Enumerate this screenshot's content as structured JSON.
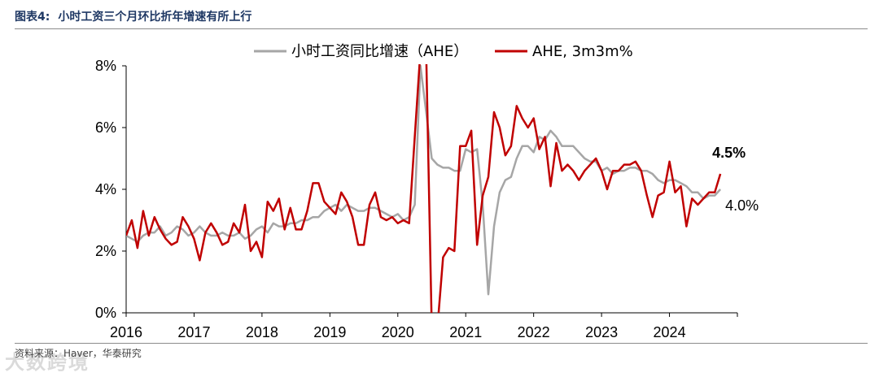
{
  "header": {
    "figure_label": "图表4:",
    "title": "小时工资三个月环比折年增速有所上行"
  },
  "source": "资料来源：Haver，华泰研究",
  "watermark": "大数跨境",
  "colors": {
    "ahe_yoy": "#a6a6a6",
    "ahe_3m3m": "#c00000",
    "axis": "#000000",
    "text": "#000000"
  },
  "chart_data": {
    "type": "line",
    "title": "",
    "xlabel": "",
    "ylabel": "",
    "ylim": [
      0,
      8
    ],
    "y_ticks": [
      "0%",
      "2%",
      "4%",
      "6%",
      "8%"
    ],
    "x_ticks": [
      "2016",
      "2017",
      "2018",
      "2019",
      "2020",
      "2021",
      "2022",
      "2023",
      "2024"
    ],
    "x_range": [
      2016.0,
      2025.0
    ],
    "legend": {
      "position": "top-center"
    },
    "series": [
      {
        "name": "小时工资同比增速（AHE）",
        "color": "#a6a6a6",
        "x": [
          2016.0,
          2016.083,
          2016.167,
          2016.25,
          2016.333,
          2016.417,
          2016.5,
          2016.583,
          2016.667,
          2016.75,
          2016.833,
          2016.917,
          2017.0,
          2017.083,
          2017.167,
          2017.25,
          2017.333,
          2017.417,
          2017.5,
          2017.583,
          2017.667,
          2017.75,
          2017.833,
          2017.917,
          2018.0,
          2018.083,
          2018.167,
          2018.25,
          2018.333,
          2018.417,
          2018.5,
          2018.583,
          2018.667,
          2018.75,
          2018.833,
          2018.917,
          2019.0,
          2019.083,
          2019.167,
          2019.25,
          2019.333,
          2019.417,
          2019.5,
          2019.583,
          2019.667,
          2019.75,
          2019.833,
          2019.917,
          2020.0,
          2020.083,
          2020.167,
          2020.25,
          2020.333,
          2020.417,
          2020.5,
          2020.583,
          2020.667,
          2020.75,
          2020.833,
          2020.917,
          2021.0,
          2021.083,
          2021.167,
          2021.25,
          2021.333,
          2021.417,
          2021.5,
          2021.583,
          2021.667,
          2021.75,
          2021.833,
          2021.917,
          2022.0,
          2022.083,
          2022.167,
          2022.25,
          2022.333,
          2022.417,
          2022.5,
          2022.583,
          2022.667,
          2022.75,
          2022.833,
          2022.917,
          2023.0,
          2023.083,
          2023.167,
          2023.25,
          2023.333,
          2023.417,
          2023.5,
          2023.583,
          2023.667,
          2023.75,
          2023.833,
          2023.917,
          2024.0,
          2024.083,
          2024.167,
          2024.25,
          2024.333,
          2024.417,
          2024.5,
          2024.583,
          2024.667,
          2024.75
        ],
        "values": [
          2.5,
          2.4,
          2.3,
          2.5,
          2.6,
          2.6,
          2.8,
          2.5,
          2.6,
          2.8,
          2.7,
          2.5,
          2.6,
          2.8,
          2.6,
          2.5,
          2.5,
          2.6,
          2.5,
          2.5,
          2.6,
          2.4,
          2.5,
          2.7,
          2.8,
          2.6,
          2.9,
          2.8,
          2.8,
          2.9,
          2.9,
          3.0,
          3.0,
          3.1,
          3.1,
          3.3,
          3.4,
          3.5,
          3.3,
          3.5,
          3.4,
          3.3,
          3.3,
          3.4,
          3.4,
          3.3,
          3.2,
          3.1,
          3.2,
          3.0,
          3.1,
          3.5,
          8.0,
          6.5,
          5.0,
          4.8,
          4.7,
          4.7,
          4.6,
          4.6,
          5.3,
          5.2,
          5.3,
          3.5,
          0.6,
          2.8,
          3.9,
          4.3,
          4.4,
          5.0,
          5.4,
          5.4,
          5.2,
          5.7,
          5.6,
          5.9,
          5.7,
          5.4,
          5.4,
          5.4,
          5.2,
          5.0,
          4.9,
          4.9,
          4.6,
          4.7,
          4.5,
          4.6,
          4.6,
          4.7,
          4.7,
          4.6,
          4.6,
          4.5,
          4.3,
          4.2,
          4.3,
          4.3,
          4.2,
          4.1,
          3.9,
          3.9,
          3.7,
          3.8,
          3.8,
          4.0
        ]
      },
      {
        "name": "AHE, 3m3m%",
        "color": "#c00000",
        "x": [
          2016.0,
          2016.083,
          2016.167,
          2016.25,
          2016.333,
          2016.417,
          2016.5,
          2016.583,
          2016.667,
          2016.75,
          2016.833,
          2016.917,
          2017.0,
          2017.083,
          2017.167,
          2017.25,
          2017.333,
          2017.417,
          2017.5,
          2017.583,
          2017.667,
          2017.75,
          2017.833,
          2017.917,
          2018.0,
          2018.083,
          2018.167,
          2018.25,
          2018.333,
          2018.417,
          2018.5,
          2018.583,
          2018.667,
          2018.75,
          2018.833,
          2018.917,
          2019.0,
          2019.083,
          2019.167,
          2019.25,
          2019.333,
          2019.417,
          2019.5,
          2019.583,
          2019.667,
          2019.75,
          2019.833,
          2019.917,
          2020.0,
          2020.083,
          2020.167,
          2020.25,
          2020.333,
          2020.417,
          2020.5,
          2020.583,
          2020.667,
          2020.75,
          2020.833,
          2020.917,
          2021.0,
          2021.083,
          2021.167,
          2021.25,
          2021.333,
          2021.417,
          2021.5,
          2021.583,
          2021.667,
          2021.75,
          2021.833,
          2021.917,
          2022.0,
          2022.083,
          2022.167,
          2022.25,
          2022.333,
          2022.417,
          2022.5,
          2022.583,
          2022.667,
          2022.75,
          2022.833,
          2022.917,
          2023.0,
          2023.083,
          2023.167,
          2023.25,
          2023.333,
          2023.417,
          2023.5,
          2023.583,
          2023.667,
          2023.75,
          2023.833,
          2023.917,
          2024.0,
          2024.083,
          2024.167,
          2024.25,
          2024.333,
          2024.417,
          2024.5,
          2024.583,
          2024.667,
          2024.75
        ],
        "values": [
          2.5,
          3.0,
          2.1,
          3.3,
          2.5,
          3.1,
          2.7,
          2.4,
          2.2,
          2.3,
          3.1,
          2.8,
          2.4,
          1.7,
          2.6,
          2.9,
          2.6,
          2.2,
          2.3,
          2.9,
          2.6,
          3.5,
          2.0,
          2.3,
          1.8,
          3.6,
          3.3,
          3.7,
          2.7,
          3.4,
          2.7,
          2.7,
          3.3,
          4.2,
          4.2,
          3.6,
          3.4,
          3.2,
          3.9,
          3.6,
          3.1,
          2.2,
          2.2,
          3.5,
          3.9,
          3.1,
          3.0,
          3.1,
          2.9,
          3.0,
          2.9,
          5.7,
          8.5,
          8.5,
          -0.5,
          -0.5,
          1.8,
          2.1,
          2.0,
          5.4,
          5.4,
          5.9,
          2.2,
          3.8,
          4.4,
          6.5,
          6.0,
          5.1,
          5.4,
          6.7,
          6.3,
          6.0,
          6.3,
          5.3,
          5.7,
          4.1,
          5.5,
          4.6,
          4.8,
          4.6,
          4.3,
          4.6,
          4.8,
          5.0,
          4.6,
          4.0,
          4.6,
          4.6,
          4.8,
          4.8,
          4.9,
          4.6,
          3.8,
          3.1,
          3.8,
          3.9,
          4.9,
          3.9,
          4.1,
          2.8,
          3.7,
          3.5,
          3.7,
          3.9,
          3.9,
          4.5
        ]
      }
    ],
    "annotations": [
      {
        "text": "4.5%",
        "series": "AHE, 3m3m%",
        "color": "#c00000"
      },
      {
        "text": "4.0%",
        "series": "小时工资同比增速（AHE）",
        "color": "#000000"
      }
    ]
  }
}
